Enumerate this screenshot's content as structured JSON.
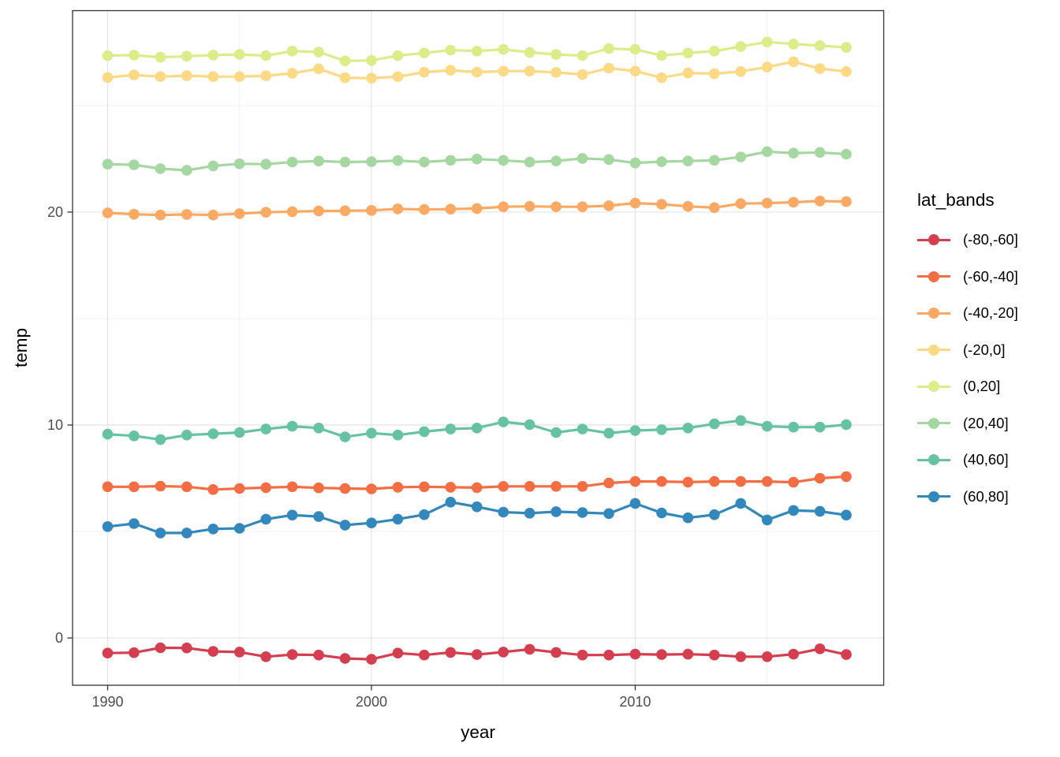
{
  "chart_data": {
    "type": "line",
    "title": "",
    "xlabel": "year",
    "ylabel": "temp",
    "legend_title": "lat_bands",
    "legend_position": "right",
    "grid": "major and minor, light gray on white panel (ggplot theme_bw style)",
    "x_ticks": [
      1990,
      2000,
      2010
    ],
    "y_ticks": [
      0,
      10,
      20
    ],
    "x_minor_gridlines": [
      1995,
      2005,
      2015
    ],
    "y_minor_gridlines": [
      5,
      15,
      25
    ],
    "xlim": [
      1988.67,
      2019.42
    ],
    "ylim": [
      -2.22,
      29.46
    ],
    "marker": "filled circle",
    "years": [
      1990,
      1991,
      1992,
      1993,
      1994,
      1995,
      1996,
      1997,
      1998,
      1999,
      2000,
      2001,
      2002,
      2003,
      2004,
      2005,
      2006,
      2007,
      2008,
      2009,
      2010,
      2011,
      2012,
      2013,
      2014,
      2015,
      2016,
      2017,
      2018
    ],
    "series": [
      {
        "name": "(-80,-60]",
        "color": "#d53e4f",
        "values": [
          -0.71,
          -0.69,
          -0.46,
          -0.47,
          -0.63,
          -0.66,
          -0.88,
          -0.78,
          -0.8,
          -0.96,
          -1.0,
          -0.71,
          -0.8,
          -0.68,
          -0.78,
          -0.66,
          -0.53,
          -0.68,
          -0.8,
          -0.8,
          -0.76,
          -0.78,
          -0.76,
          -0.8,
          -0.88,
          -0.88,
          -0.76,
          -0.51,
          -0.78
        ]
      },
      {
        "name": "(-60,-40]",
        "color": "#f46d43",
        "values": [
          7.1,
          7.1,
          7.13,
          7.1,
          6.97,
          7.02,
          7.06,
          7.1,
          7.05,
          7.02,
          7.0,
          7.08,
          7.1,
          7.08,
          7.06,
          7.12,
          7.12,
          7.12,
          7.12,
          7.28,
          7.35,
          7.35,
          7.32,
          7.35,
          7.35,
          7.35,
          7.31,
          7.5,
          7.58
        ]
      },
      {
        "name": "(-40,-20]",
        "color": "#fba963",
        "values": [
          19.96,
          19.9,
          19.86,
          19.89,
          19.86,
          19.93,
          19.99,
          20.02,
          20.05,
          20.06,
          20.08,
          20.15,
          20.12,
          20.14,
          20.17,
          20.25,
          20.27,
          20.25,
          20.25,
          20.3,
          20.42,
          20.37,
          20.27,
          20.21,
          20.4,
          20.42,
          20.46,
          20.52,
          20.49
        ]
      },
      {
        "name": "(-20,0]",
        "color": "#fcd985",
        "values": [
          26.32,
          26.44,
          26.36,
          26.4,
          26.36,
          26.36,
          26.4,
          26.52,
          26.73,
          26.31,
          26.29,
          26.36,
          26.57,
          26.66,
          26.57,
          26.62,
          26.62,
          26.56,
          26.46,
          26.76,
          26.62,
          26.31,
          26.53,
          26.5,
          26.6,
          26.81,
          27.06,
          26.74,
          26.6
        ]
      },
      {
        "name": "(0,20]",
        "color": "#dcec89",
        "values": [
          27.35,
          27.37,
          27.27,
          27.32,
          27.37,
          27.4,
          27.35,
          27.56,
          27.52,
          27.1,
          27.12,
          27.35,
          27.47,
          27.61,
          27.56,
          27.64,
          27.5,
          27.4,
          27.35,
          27.68,
          27.64,
          27.35,
          27.47,
          27.56,
          27.77,
          27.99,
          27.89,
          27.82,
          27.73
        ]
      },
      {
        "name": "(20,40]",
        "color": "#a5d8a0",
        "values": [
          22.25,
          22.22,
          22.04,
          21.96,
          22.17,
          22.27,
          22.25,
          22.35,
          22.4,
          22.35,
          22.37,
          22.42,
          22.35,
          22.43,
          22.49,
          22.43,
          22.35,
          22.4,
          22.52,
          22.47,
          22.31,
          22.37,
          22.4,
          22.43,
          22.59,
          22.84,
          22.77,
          22.8,
          22.72
        ]
      },
      {
        "name": "(40,60]",
        "color": "#66c2a5",
        "values": [
          9.57,
          9.49,
          9.32,
          9.53,
          9.59,
          9.65,
          9.81,
          9.94,
          9.86,
          9.44,
          9.62,
          9.53,
          9.69,
          9.81,
          9.86,
          10.15,
          10.02,
          9.65,
          9.81,
          9.62,
          9.74,
          9.78,
          9.86,
          10.06,
          10.21,
          9.94,
          9.9,
          9.9,
          10.02
        ]
      },
      {
        "name": "(60,80]",
        "color": "#3288bd",
        "values": [
          5.23,
          5.37,
          4.93,
          4.93,
          5.12,
          5.15,
          5.58,
          5.77,
          5.7,
          5.3,
          5.4,
          5.58,
          5.79,
          6.38,
          6.16,
          5.91,
          5.86,
          5.93,
          5.89,
          5.84,
          6.32,
          5.87,
          5.64,
          5.79,
          6.32,
          5.54,
          5.99,
          5.95,
          5.77
        ]
      }
    ]
  },
  "colors": {
    "axis_text": "#4d4d4d",
    "axis_title": "#000000",
    "panel_border": "#343434",
    "tick_mark": "#333333",
    "grid_major": "#e4e4e4",
    "grid_minor": "#f0f0f0",
    "background": "#ffffff"
  }
}
